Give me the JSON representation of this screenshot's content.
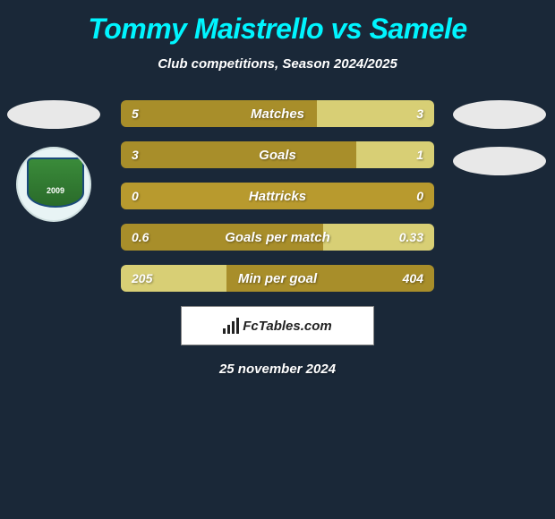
{
  "title": "Tommy Maistrello vs Samele",
  "subtitle": "Club competitions, Season 2024/2025",
  "footer_date": "25 november 2024",
  "watermark": "FcTables.com",
  "colors": {
    "background": "#1a2838",
    "title": "#00f5ff",
    "text": "#ffffff",
    "bar_left": "#a88e2a",
    "bar_right": "#d8cf75",
    "bar_neutral": "#b89a2e"
  },
  "badge": {
    "year": "2009"
  },
  "stats": [
    {
      "label": "Matches",
      "left_val": "5",
      "right_val": "3",
      "left_pct": 62.5,
      "right_pct": 37.5,
      "left_color": "#a88e2a",
      "right_color": "#d8cf75"
    },
    {
      "label": "Goals",
      "left_val": "3",
      "right_val": "1",
      "left_pct": 75,
      "right_pct": 25,
      "left_color": "#a88e2a",
      "right_color": "#d8cf75"
    },
    {
      "label": "Hattricks",
      "left_val": "0",
      "right_val": "0",
      "left_pct": 100,
      "right_pct": 0,
      "left_color": "#b89a2e",
      "right_color": "#b89a2e"
    },
    {
      "label": "Goals per match",
      "left_val": "0.6",
      "right_val": "0.33",
      "left_pct": 64.5,
      "right_pct": 35.5,
      "left_color": "#a88e2a",
      "right_color": "#d8cf75"
    },
    {
      "label": "Min per goal",
      "left_val": "205",
      "right_val": "404",
      "left_pct": 33.7,
      "right_pct": 66.3,
      "left_color": "#d8cf75",
      "right_color": "#a88e2a"
    }
  ]
}
